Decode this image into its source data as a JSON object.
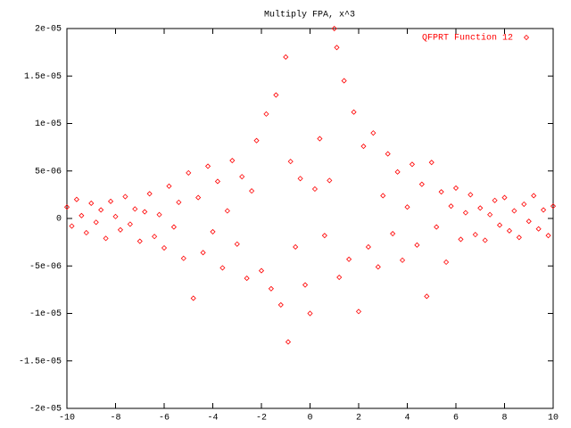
{
  "chart_data": {
    "type": "scatter",
    "title": "Multiply FPA, x^3",
    "xlim": [
      -10,
      10
    ],
    "xticks": [
      -10,
      -8,
      -6,
      -4,
      -2,
      0,
      2,
      4,
      6,
      8,
      10
    ],
    "ylim": [
      -2e-05,
      2e-05
    ],
    "yticks": [
      {
        "value": -2e-05,
        "label": "-2e-05"
      },
      {
        "value": -1.5e-05,
        "label": "-1.5e-05"
      },
      {
        "value": -1e-05,
        "label": "-1e-05"
      },
      {
        "value": -5e-06,
        "label": "-5e-06"
      },
      0,
      {
        "value": 5e-06,
        "label": "5e-06"
      },
      {
        "value": 1e-05,
        "label": "1e-05"
      },
      {
        "value": 1.5e-05,
        "label": "1.5e-05"
      },
      {
        "value": 2e-05,
        "label": "2e-05"
      }
    ],
    "legend": "top-right",
    "x": [
      -10,
      -9.8,
      -9.6,
      -9.4,
      -9.2,
      -9.0,
      -8.8,
      -8.6,
      -8.4,
      -8.2,
      -8.0,
      -7.8,
      -7.6,
      -7.4,
      -7.2,
      -7.0,
      -6.8,
      -6.6,
      -6.4,
      -6.2,
      -6.0,
      -5.8,
      -5.6,
      -5.4,
      -5.2,
      -5.0,
      -4.8,
      -4.6,
      -4.4,
      -4.2,
      -4.0,
      -3.8,
      -3.6,
      -3.4,
      -3.2,
      -3.0,
      -2.8,
      -2.6,
      -2.4,
      -2.2,
      -2.0,
      -1.8,
      -1.6,
      -1.4,
      -1.2,
      -1.0,
      -0.9,
      -0.8,
      -0.6,
      -0.4,
      -0.2,
      0.0,
      0.2,
      0.4,
      0.6,
      0.8,
      1.0,
      1.1,
      1.2,
      1.4,
      1.6,
      1.8,
      2.0,
      2.2,
      2.4,
      2.6,
      2.8,
      3.0,
      3.2,
      3.4,
      3.6,
      3.8,
      4.0,
      4.2,
      4.4,
      4.6,
      4.8,
      5.0,
      5.2,
      5.4,
      5.6,
      5.8,
      6.0,
      6.2,
      6.4,
      6.6,
      6.8,
      7.0,
      7.2,
      7.4,
      7.6,
      7.8,
      8.0,
      8.2,
      8.4,
      8.6,
      8.8,
      9.0,
      9.2,
      9.4,
      9.6,
      9.8,
      10.0
    ],
    "series": [
      {
        "name": "QFPRT Function 12",
        "color": "#ff0000",
        "values": [
          1.2e-06,
          -8e-07,
          2e-06,
          3e-07,
          -1.5e-06,
          1.6e-06,
          -4e-07,
          9e-07,
          -2.1e-06,
          1.8e-06,
          2e-07,
          -1.2e-06,
          2.3e-06,
          -6e-07,
          1e-06,
          -2.4e-06,
          7e-07,
          2.6e-06,
          -1.9e-06,
          4e-07,
          -3.1e-06,
          3.4e-06,
          -9e-07,
          1.7e-06,
          -4.2e-06,
          4.8e-06,
          -8.4e-06,
          2.2e-06,
          -3.6e-06,
          5.5e-06,
          -1.4e-06,
          3.9e-06,
          -5.2e-06,
          8e-07,
          6.1e-06,
          -2.7e-06,
          4.4e-06,
          -6.3e-06,
          2.9e-06,
          8.2e-06,
          -5.5e-06,
          1.1e-05,
          -7.4e-06,
          1.3e-05,
          -9.1e-06,
          1.7e-05,
          -1.3e-05,
          6e-06,
          -3e-06,
          4.2e-06,
          -7e-06,
          -1e-05,
          3.1e-06,
          8.4e-06,
          -1.8e-06,
          4e-06,
          2e-05,
          1.8e-05,
          -6.2e-06,
          1.45e-05,
          -4.3e-06,
          1.12e-05,
          -9.8e-06,
          7.6e-06,
          -3e-06,
          9e-06,
          -5.1e-06,
          2.4e-06,
          6.8e-06,
          -1.6e-06,
          4.9e-06,
          -4.4e-06,
          1.2e-06,
          5.7e-06,
          -2.8e-06,
          3.6e-06,
          -8.2e-06,
          5.9e-06,
          -9e-07,
          2.8e-06,
          -4.6e-06,
          1.3e-06,
          3.2e-06,
          -2.2e-06,
          6e-07,
          2.5e-06,
          -1.7e-06,
          1.1e-06,
          -2.3e-06,
          4e-07,
          1.9e-06,
          -7e-07,
          2.2e-06,
          -1.3e-06,
          8e-07,
          -2e-06,
          1.5e-06,
          -3e-07,
          2.4e-06,
          -1.1e-06,
          9e-07,
          -1.8e-06,
          1.3e-06
        ]
      }
    ]
  }
}
